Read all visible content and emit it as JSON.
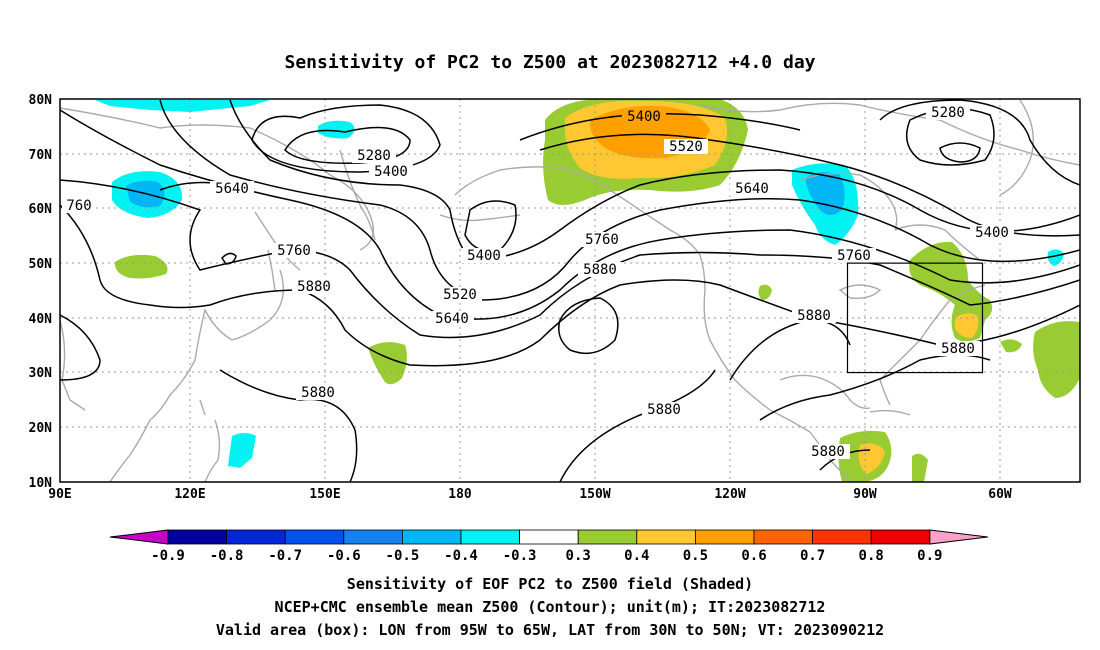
{
  "title": "Sensitivity of PC2 to Z500 at 2023082712 +4.0 day",
  "map": {
    "lon_ticks": [
      "90E",
      "120E",
      "150E",
      "180",
      "150W",
      "120W",
      "90W",
      "60W"
    ],
    "lat_ticks": [
      "80N",
      "70N",
      "60N",
      "50N",
      "40N",
      "30N",
      "20N",
      "10N"
    ],
    "valid_box": {
      "lon_min": -95,
      "lon_max": -65,
      "lat_min": 30,
      "lat_max": 50
    },
    "colors": {
      "contour": "#000000",
      "coast": "#aaaaaa",
      "grid": "#9a9a9a"
    }
  },
  "contour_labels": [
    "5280",
    "5400",
    "5640",
    "760",
    "5760",
    "5880",
    "5520",
    "5880",
    "5400",
    "5520",
    "5640",
    "5760",
    "5880",
    "5640",
    "5280",
    "5400",
    "5760",
    "5880",
    "5880",
    "5880",
    "5880"
  ],
  "colorbar": {
    "labels": [
      "-0.9",
      "-0.8",
      "-0.7",
      "-0.6",
      "-0.5",
      "-0.4",
      "-0.3",
      "0.3",
      "0.4",
      "0.5",
      "0.6",
      "0.7",
      "0.8",
      "0.9"
    ],
    "colors": [
      "#0000a0",
      "#0026d8",
      "#0052f0",
      "#1580f0",
      "#00b6f5",
      "#00f2f2",
      "#ffffff",
      "#98cc32",
      "#ffc832",
      "#ffa000",
      "#ff6400",
      "#ff3200",
      "#f00000"
    ],
    "low_arrow": "#c800c8",
    "high_arrow": "#ffa0c8"
  },
  "captions": [
    "Sensitivity of EOF PC2 to Z500 field (Shaded)",
    "NCEP+CMC ensemble mean Z500 (Contour); unit(m); IT:2023082712",
    "Valid area (box): LON from 95W to 65W, LAT from 30N to 50N; VT: 2023090212"
  ]
}
